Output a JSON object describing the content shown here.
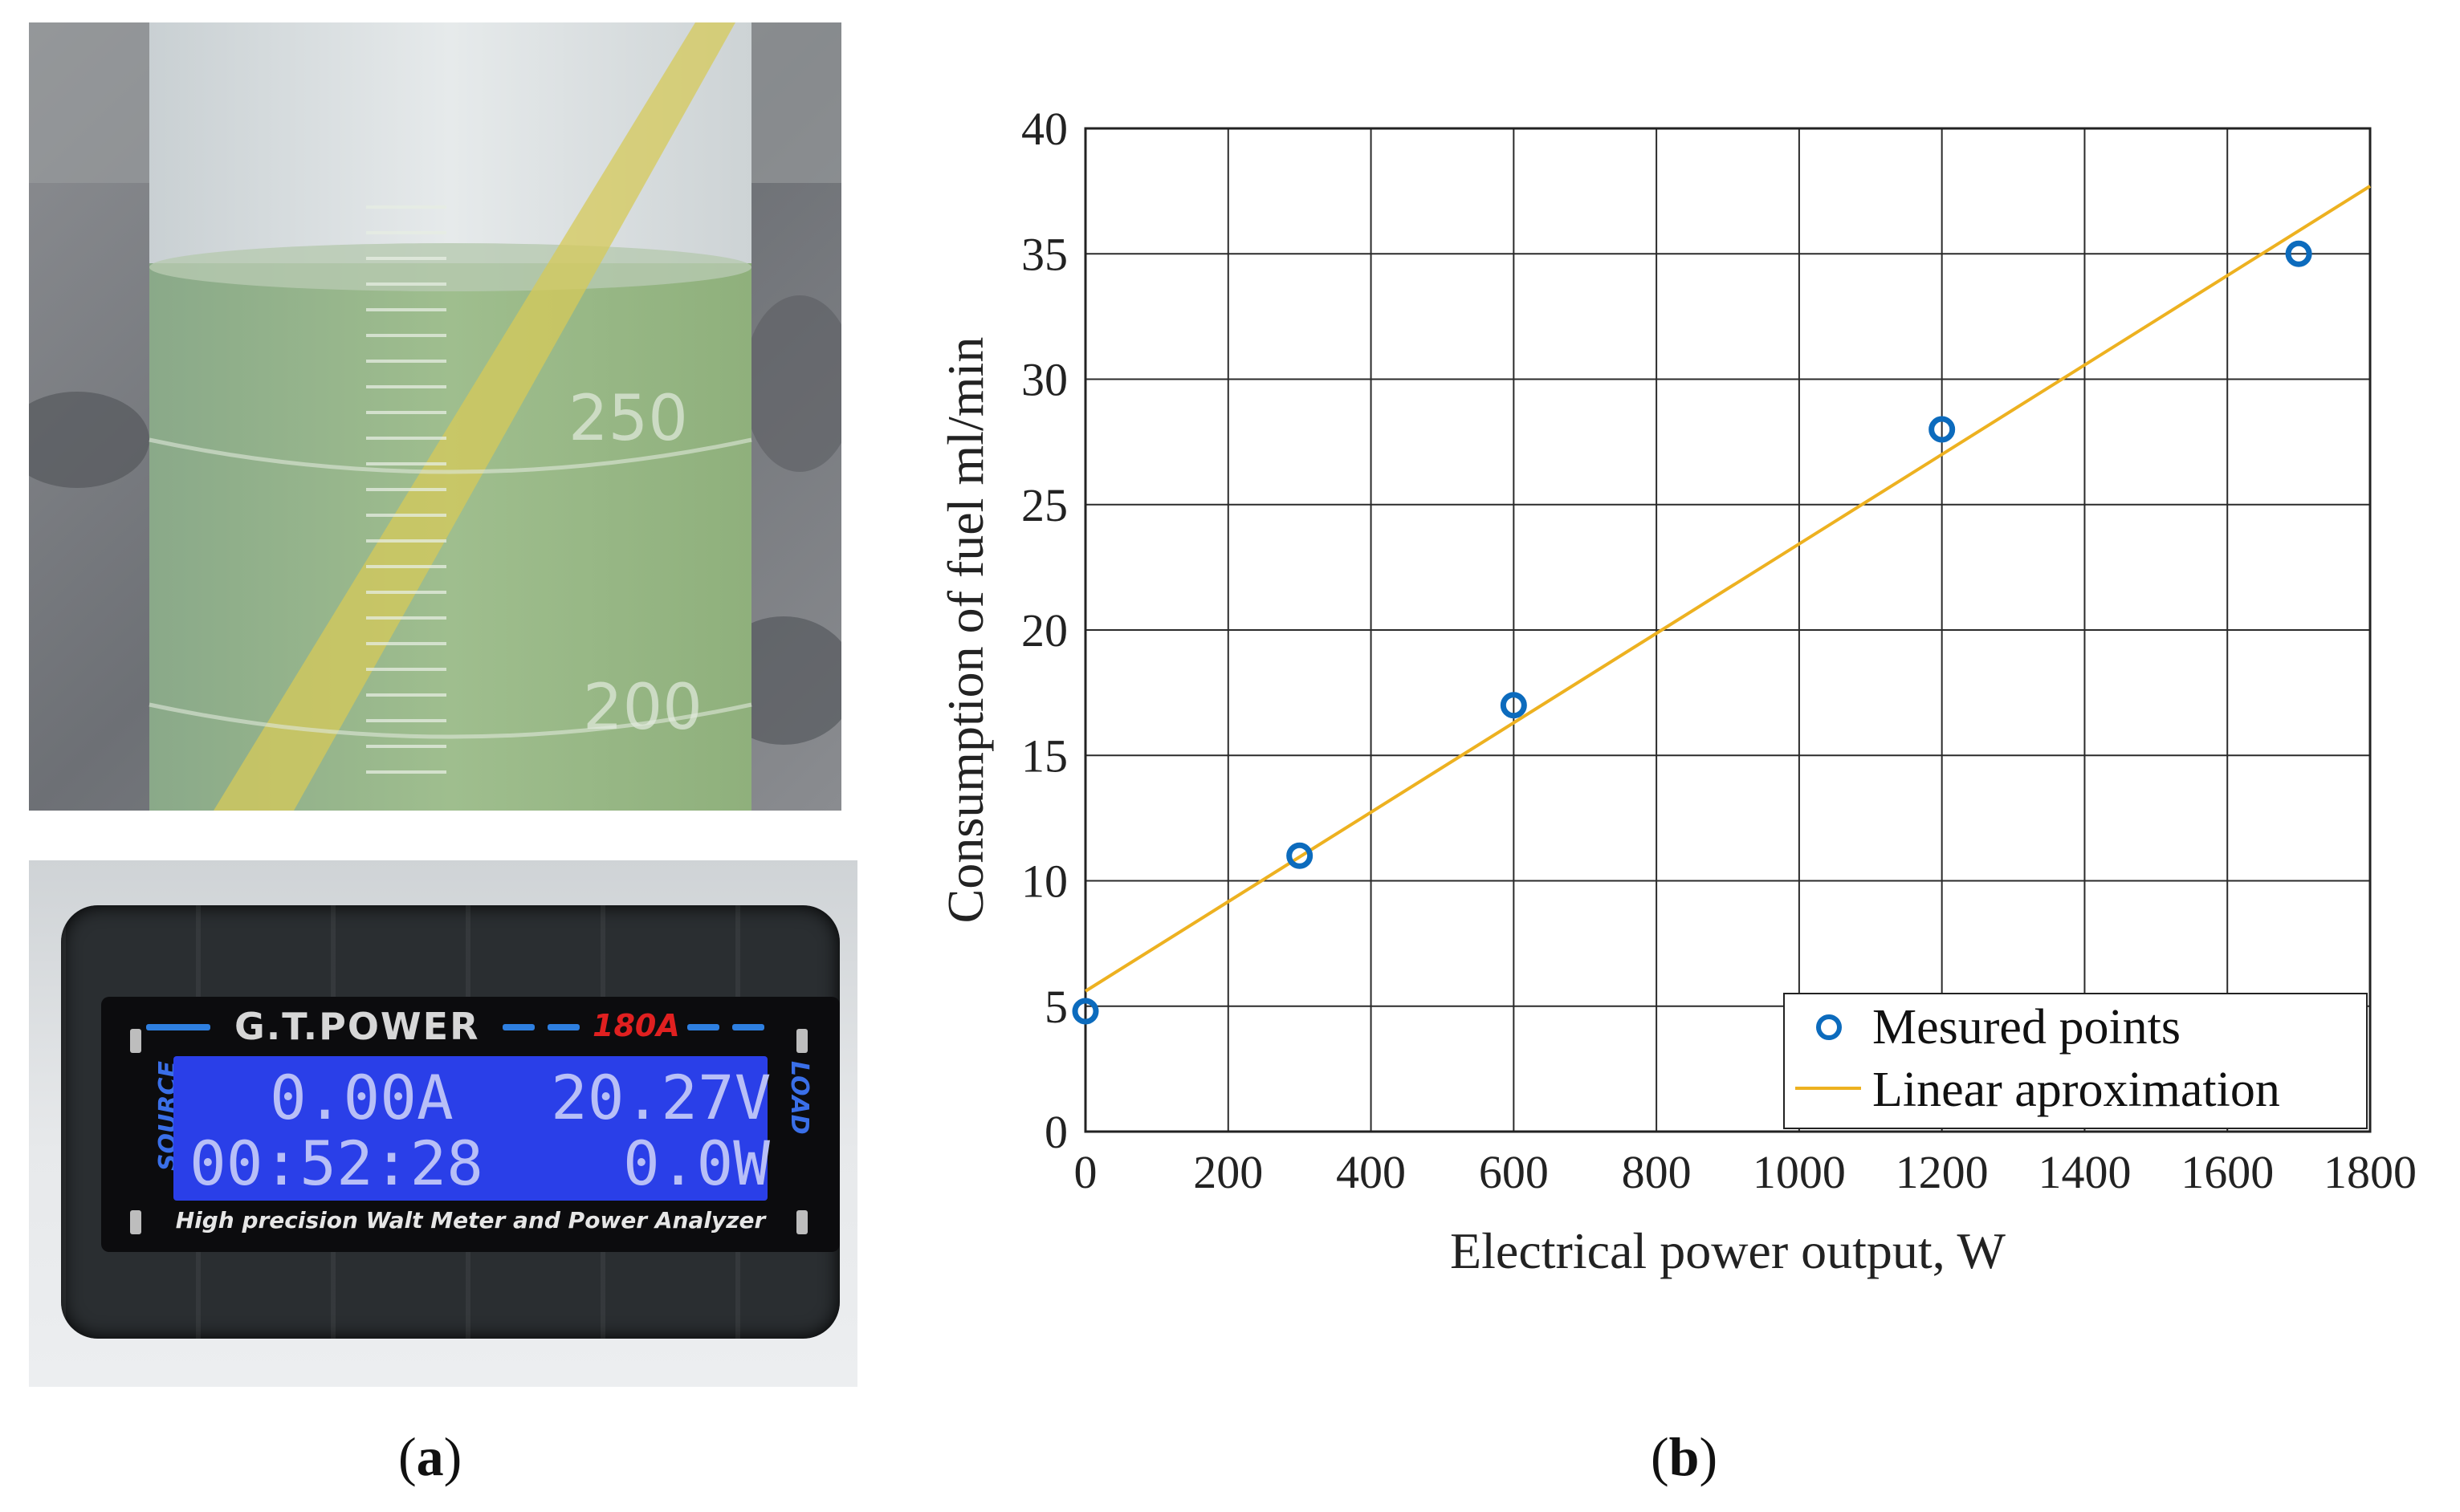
{
  "panels": {
    "a": {
      "open": "(",
      "letter": "a",
      "close": ")"
    },
    "b": {
      "open": "(",
      "letter": "b",
      "close": ")"
    }
  },
  "photo_cylinder": {
    "scale_250": "250",
    "scale_200": "200"
  },
  "meter": {
    "brand": "G.T.POWER",
    "model": "180A",
    "current": "0.00A",
    "voltage": "20.27V",
    "time": "00:52:28",
    "power": "0.0W",
    "source_label": "SOURCE",
    "load_label": "LOAD",
    "caption": "High precision Walt Meter and Power Analyzer"
  },
  "chart_data": {
    "type": "scatter",
    "title": "",
    "xlabel": "Electrical power output, W",
    "ylabel": "Consumption of fuel ml/min",
    "xlim": [
      0,
      1800
    ],
    "ylim": [
      0,
      40
    ],
    "xticks": [
      0,
      200,
      400,
      600,
      800,
      1000,
      1200,
      1400,
      1600,
      1800
    ],
    "yticks": [
      0,
      5,
      10,
      15,
      20,
      25,
      30,
      35,
      40
    ],
    "grid": true,
    "legend_position": "bottom-right",
    "series": [
      {
        "name": "Mesured points",
        "kind": "markers",
        "marker": "open-circle",
        "color": "#0c6bbd",
        "x": [
          0,
          300,
          600,
          1200,
          1700
        ],
        "y": [
          4.8,
          11,
          17,
          28,
          35
        ]
      },
      {
        "name": "Linear aproximation",
        "kind": "line",
        "color": "#edb120",
        "x": [
          0,
          1800
        ],
        "y": [
          5.6,
          37.7
        ]
      }
    ]
  }
}
